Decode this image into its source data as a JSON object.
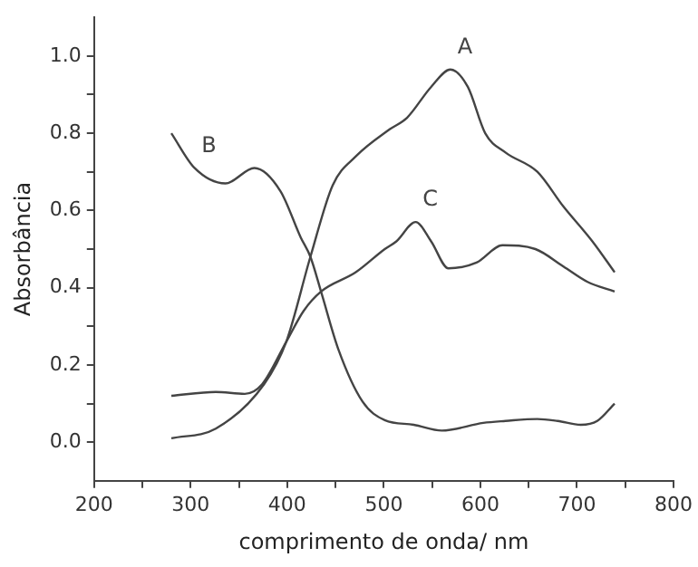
{
  "chart_data": {
    "type": "line",
    "xlabel": "comprimento de onda/ nm",
    "ylabel": "Absorbância",
    "xlim": [
      200,
      800
    ],
    "ylim": [
      -0.1,
      1.1
    ],
    "xticks": [
      200,
      {
        "value": 250,
        "label": null
      },
      300,
      {
        "value": 350,
        "label": null
      },
      400,
      {
        "value": 450,
        "label": null
      },
      500,
      {
        "value": 550,
        "label": null
      },
      600,
      {
        "value": 650,
        "label": null
      },
      700,
      {
        "value": 750,
        "label": null
      },
      800
    ],
    "yticks": [
      {
        "value": 0,
        "label": "0.0"
      },
      {
        "value": 0.1,
        "label": null
      },
      0.2,
      {
        "value": 0.3,
        "label": null
      },
      0.4,
      {
        "value": 0.5,
        "label": null
      },
      0.6,
      {
        "value": 0.7,
        "label": null
      },
      0.8,
      {
        "value": 0.9,
        "label": null
      },
      {
        "value": 1,
        "label": "1.0"
      }
    ],
    "grid": false,
    "legend": false,
    "marker": "none",
    "line_style": "solid",
    "series": [
      {
        "name": "A",
        "color": "#444444",
        "x": [
          280,
          326,
          376,
          399,
          424,
          447,
          471,
          506,
          524,
          549,
          569,
          587,
          605,
          626,
          659,
          686,
          716,
          739
        ],
        "values": [
          0.01,
          0.035,
          0.15,
          0.26,
          0.48,
          0.665,
          0.74,
          0.81,
          0.84,
          0.92,
          0.965,
          0.92,
          0.8,
          0.75,
          0.7,
          0.61,
          0.52,
          0.44
        ]
      },
      {
        "name": "B",
        "color": "#444444",
        "x": [
          280,
          304,
          336,
          366,
          393,
          414,
          424,
          435,
          453,
          478,
          501,
          531,
          560,
          603,
          626,
          659,
          680,
          704,
          721,
          739
        ],
        "values": [
          0.8,
          0.71,
          0.67,
          0.71,
          0.65,
          0.53,
          0.48,
          0.39,
          0.24,
          0.105,
          0.057,
          0.045,
          0.03,
          0.05,
          0.055,
          0.06,
          0.055,
          0.045,
          0.055,
          0.1
        ]
      },
      {
        "name": "C",
        "color": "#444444",
        "x": [
          280,
          326,
          356,
          374,
          399,
          417,
          435,
          471,
          501,
          513,
          533,
          549,
          567,
          596,
          623,
          657,
          686,
          711,
          739
        ],
        "values": [
          0.12,
          0.13,
          0.125,
          0.15,
          0.26,
          0.34,
          0.39,
          0.44,
          0.5,
          0.52,
          0.57,
          0.52,
          0.45,
          0.465,
          0.51,
          0.5,
          0.455,
          0.415,
          0.39
        ]
      }
    ]
  }
}
